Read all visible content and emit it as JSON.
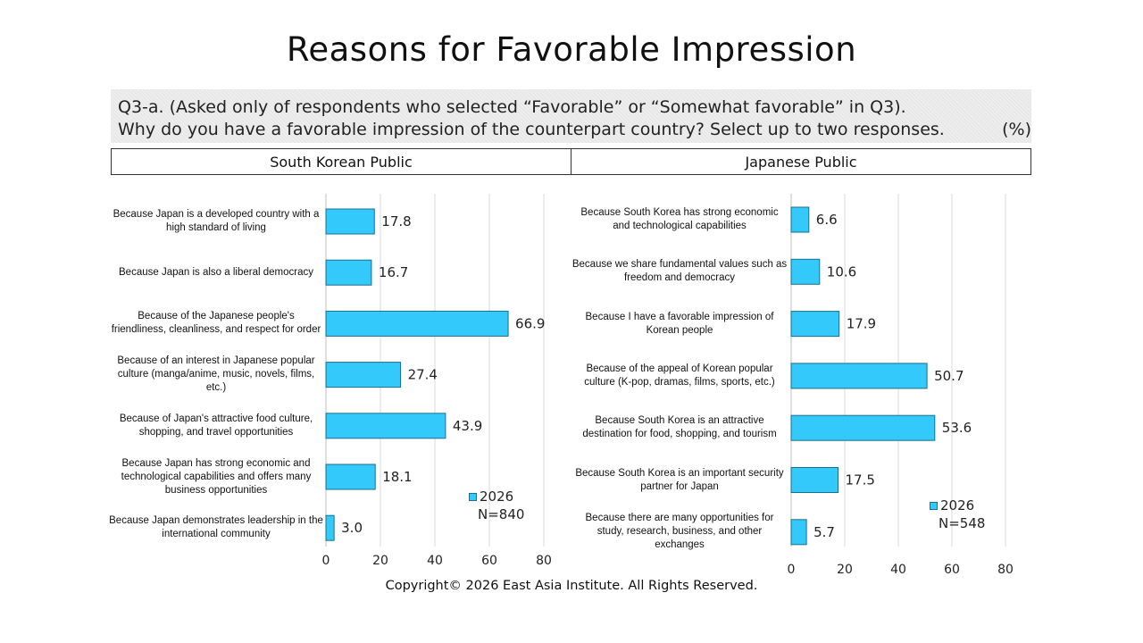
{
  "title": "Reasons for Favorable Impression",
  "question": {
    "line1": "Q3-a. (Asked only of respondents who selected “Favorable” or “Somewhat favorable” in Q3).",
    "line2": "Why do you have a favorable impression of the counterpart country? Select up to two responses.",
    "unit": "(%)"
  },
  "headers": {
    "left": "South Korean Public",
    "right": "Japanese Public"
  },
  "copyright": "Copyright© 2026 East Asia Institute. All Rights Reserved.",
  "colors": {
    "bar": "#33c9fb",
    "bar_border": "#1a6f8e",
    "grid": "#d9d9d9"
  },
  "chart_data": [
    {
      "type": "bar",
      "orientation": "horizontal",
      "categories": [
        "Because Japan is a developed country with a high standard of living",
        "Because Japan is also a liberal democracy",
        "Because of the Japanese people's friendliness, cleanliness, and respect for order",
        "Because of an interest in Japanese popular culture (manga/anime, music, novels, films, etc.)",
        "Because of Japan's attractive food culture, shopping, and travel opportunities",
        "Because Japan has strong economic and technological capabilities and offers many business opportunities",
        "Because Japan demonstrates leadership in the international community"
      ],
      "series": [
        {
          "name": "2026",
          "values": [
            17.8,
            16.7,
            66.9,
            27.4,
            43.9,
            18.1,
            3.0
          ]
        }
      ],
      "value_labels": [
        "17.8",
        "16.7",
        "66.9",
        "27.4",
        "43.9",
        "18.1",
        "3.0"
      ],
      "xlim": [
        0,
        80
      ],
      "ticks": [
        0,
        20,
        40,
        60,
        80
      ],
      "grid": true,
      "legend_position": "bottom-right",
      "legend": {
        "series": "2026",
        "n": "N=840"
      }
    },
    {
      "type": "bar",
      "orientation": "horizontal",
      "categories": [
        "Because South Korea has strong economic and technological capabilities",
        "Because we share fundamental values such as freedom and democracy",
        "Because I have a favorable impression of Korean people",
        "Because of the appeal of Korean popular culture (K-pop, dramas, films, sports, etc.)",
        "Because South Korea is an attractive destination for food, shopping, and tourism",
        "Because South Korea is an important security partner for Japan",
        "Because there are many opportunities for study, research, business, and other exchanges"
      ],
      "series": [
        {
          "name": "2026",
          "values": [
            6.6,
            10.6,
            17.9,
            50.7,
            53.6,
            17.5,
            5.7
          ]
        }
      ],
      "value_labels": [
        "6.6",
        "10.6",
        "17.9",
        "50.7",
        "53.6",
        "17.5",
        "5.7"
      ],
      "xlim": [
        0,
        80
      ],
      "ticks": [
        0,
        20,
        40,
        60,
        80
      ],
      "grid": true,
      "legend_position": "bottom-right",
      "legend": {
        "series": "2026",
        "n": "N=548"
      }
    }
  ]
}
